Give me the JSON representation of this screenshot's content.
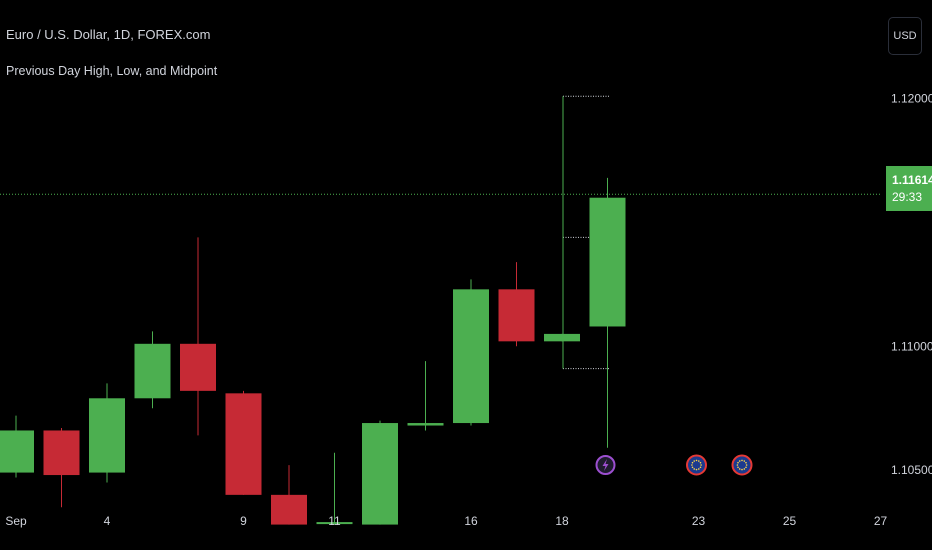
{
  "header": {
    "symbol_title": "Euro / U.S. Dollar, 1D, FOREX.com",
    "indicator": "Previous Day High, Low, and Midpoint",
    "currency_button": "USD"
  },
  "price_label": {
    "price": "1.11614",
    "countdown": "29:33",
    "color": "#4caf50"
  },
  "colors": {
    "up": "#4caf50",
    "down": "#c62a35",
    "background": "#000000",
    "price_line": "#4caf50",
    "event_lightning": "#9c4fd0",
    "event_eu": "#e53935"
  },
  "chart_data": {
    "type": "candlestick",
    "title": "",
    "xlabel": "",
    "ylabel": "",
    "ylim": [
      1.1025,
      1.1235
    ],
    "y_ticks": [
      "1.12000",
      "1.11000",
      "1.10500"
    ],
    "y_tick_values": [
      1.12,
      1.11,
      1.105
    ],
    "x_ticks": [
      {
        "label": "Sep",
        "x": 0
      },
      {
        "label": "4",
        "x": 2
      },
      {
        "label": "9",
        "x": 5
      },
      {
        "label": "11",
        "x": 7
      },
      {
        "label": "16",
        "x": 10
      },
      {
        "label": "18",
        "x": 12
      },
      {
        "label": "23",
        "x": 15
      },
      {
        "label": "25",
        "x": 17
      },
      {
        "label": "27",
        "x": 19
      }
    ],
    "candles": [
      {
        "x": 0,
        "open": 1.1049,
        "high": 1.1072,
        "low": 1.1047,
        "close": 1.1066
      },
      {
        "x": 1,
        "open": 1.1066,
        "high": 1.1067,
        "low": 1.1035,
        "close": 1.1048
      },
      {
        "x": 2,
        "open": 1.1049,
        "high": 1.1085,
        "low": 1.1045,
        "close": 1.1079
      },
      {
        "x": 3,
        "open": 1.1079,
        "high": 1.1106,
        "low": 1.1075,
        "close": 1.1101
      },
      {
        "x": 4,
        "open": 1.1101,
        "high": 1.1144,
        "low": 1.1064,
        "close": 1.1082
      },
      {
        "x": 5,
        "open": 1.1081,
        "high": 1.1082,
        "low": 1.104,
        "close": 1.104
      },
      {
        "x": 6,
        "open": 1.104,
        "high": 1.1052,
        "low": 1.1028,
        "close": 1.1028
      },
      {
        "x": 7,
        "open": 1.1029,
        "high": 1.1057,
        "low": 1.1028,
        "close": 1.1029
      },
      {
        "x": 8,
        "open": 1.1028,
        "high": 1.107,
        "low": 1.1028,
        "close": 1.1069
      },
      {
        "x": 9,
        "open": 1.1068,
        "high": 1.1094,
        "low": 1.1066,
        "close": 1.1069
      },
      {
        "x": 10,
        "open": 1.1069,
        "high": 1.1127,
        "low": 1.1068,
        "close": 1.1123
      },
      {
        "x": 11,
        "open": 1.1123,
        "high": 1.1134,
        "low": 1.11,
        "close": 1.1102
      },
      {
        "x": 12,
        "open": 1.1102,
        "high": 1.1105,
        "low": 1.1102,
        "close": 1.1105
      },
      {
        "x": 13,
        "open": 1.1108,
        "high": 1.1168,
        "low": 1.1059,
        "close": 1.116
      }
    ],
    "prev_day_levels": {
      "x_start": 12,
      "x_end": 12.5,
      "high": 1.1201,
      "mid": 1.1144,
      "low": 1.1091
    },
    "current_price": 1.11614,
    "events": [
      {
        "x": 13,
        "type": "lightning"
      },
      {
        "x": 15,
        "type": "eu-flag"
      },
      {
        "x": 16,
        "type": "eu-flag"
      }
    ]
  }
}
